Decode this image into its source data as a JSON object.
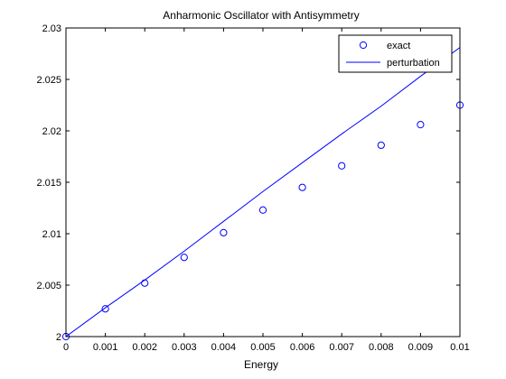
{
  "chart_data": {
    "type": "line",
    "title": "Anharmonic Oscillator with Antisymmetry",
    "xlabel": "Energy",
    "ylabel": "",
    "xlim": [
      0,
      0.01
    ],
    "ylim": [
      2,
      2.03
    ],
    "xticks": [
      0,
      0.001,
      0.002,
      0.003,
      0.004,
      0.005,
      0.006,
      0.007,
      0.008,
      0.009,
      0.01
    ],
    "xtick_labels": [
      "0",
      "0.001",
      "0.002",
      "0.003",
      "0.004",
      "0.005",
      "0.006",
      "0.007",
      "0.008",
      "0.009",
      "0.01"
    ],
    "yticks": [
      2,
      2.005,
      2.01,
      2.015,
      2.02,
      2.025,
      2.03
    ],
    "ytick_labels": [
      "2",
      "2.005",
      "2.01",
      "2.015",
      "2.02",
      "2.025",
      "2.03"
    ],
    "grid": false,
    "legend_position": "top-right",
    "series": [
      {
        "name": "exact",
        "style": "markers",
        "marker": "circle",
        "color": "#0000ff",
        "x": [
          0,
          0.001,
          0.002,
          0.003,
          0.004,
          0.005,
          0.006,
          0.007,
          0.008,
          0.009,
          0.01
        ],
        "y": [
          2.0,
          2.0027,
          2.0052,
          2.0077,
          2.0101,
          2.0123,
          2.0145,
          2.0166,
          2.0186,
          2.0206,
          2.0225
        ]
      },
      {
        "name": "perturbation",
        "style": "line",
        "color": "#0000ff",
        "x": [
          0,
          0.001,
          0.002,
          0.003,
          0.004,
          0.005,
          0.006,
          0.007,
          0.008,
          0.009,
          0.01
        ],
        "y": [
          2.0,
          2.0028,
          2.0055,
          2.0083,
          2.0112,
          2.0141,
          2.0169,
          2.0197,
          2.0224,
          2.0253,
          2.0281
        ]
      }
    ]
  }
}
